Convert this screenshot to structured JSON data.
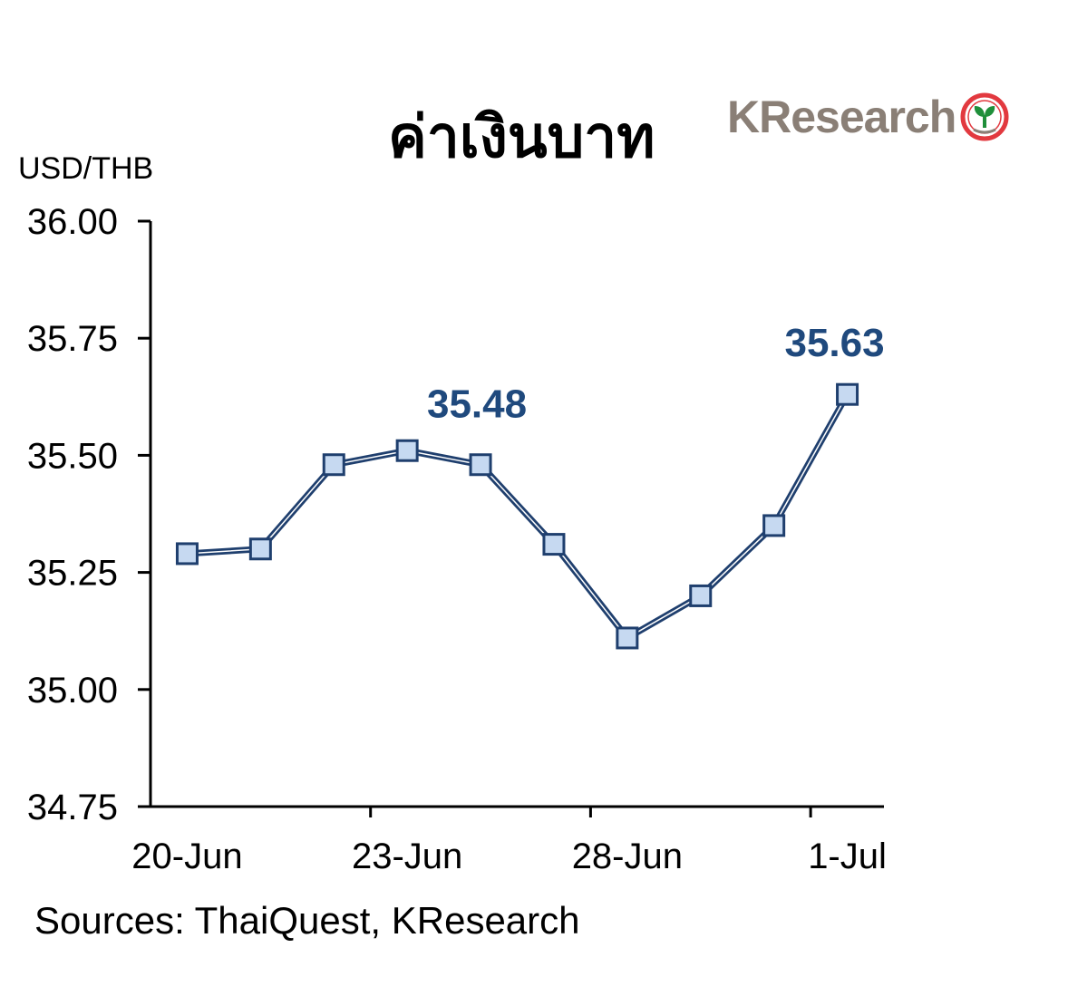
{
  "header": {
    "title": "ค่าเงินบาท",
    "logo_text": "KResearch"
  },
  "colors": {
    "line": "#1f3f6e",
    "marker_fill": "#c6d9f1",
    "label": "#1f497d",
    "axis": "#000000"
  },
  "chart_data": {
    "type": "line",
    "ylabel": "USD/THB",
    "ylim": [
      34.75,
      36.0
    ],
    "yticks": [
      "34.75",
      "35.00",
      "35.25",
      "35.50",
      "35.75",
      "36.00"
    ],
    "xtick_labels": [
      "20-Jun",
      "23-Jun",
      "28-Jun",
      "1-Jul"
    ],
    "series": [
      {
        "values": [
          35.29,
          35.3,
          35.48,
          35.51,
          35.48,
          35.31,
          35.11,
          35.2,
          35.35,
          35.63
        ]
      }
    ],
    "annotations": [
      {
        "text": "35.48",
        "point_index": 4
      },
      {
        "text": "35.63",
        "point_index": 9
      }
    ],
    "grid": false,
    "legend": "none"
  },
  "footer": {
    "sources": "Sources: ThaiQuest, KResearch"
  }
}
